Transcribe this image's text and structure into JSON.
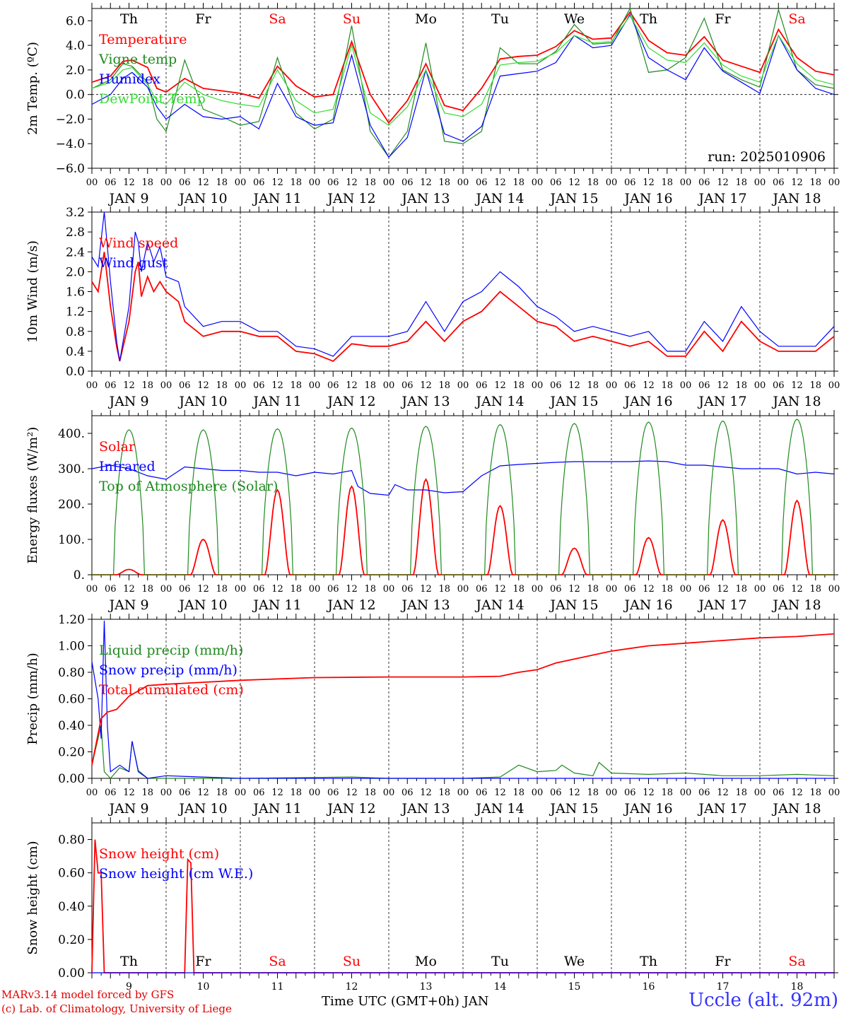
{
  "day_labels": [
    "Th",
    "Fr",
    "Sa",
    "Su",
    "Mo",
    "Tu",
    "We",
    "Th",
    "Fr",
    "Sa"
  ],
  "weekend_flags": [
    false,
    false,
    true,
    true,
    false,
    false,
    false,
    false,
    false,
    true
  ],
  "hour_ticks": [
    "00",
    "06",
    "12",
    "18"
  ],
  "date_labels": [
    "JAN  9",
    "JAN 10",
    "JAN 11",
    "JAN 12",
    "JAN 13",
    "JAN 14",
    "JAN 15",
    "JAN 16",
    "JAN 17",
    "JAN 18"
  ],
  "bottom_day_numbers": [
    "9",
    "10",
    "11",
    "12",
    "13",
    "14",
    "15",
    "16",
    "17",
    "18"
  ],
  "run_label": "run: 2025010906",
  "xaxis_title": "Time UTC (GMT+0h) JAN",
  "footer": {
    "line1": "MARv3.14 model forced by GFS",
    "line2": "(c) Lab. of Climatology, University of Liege",
    "station": "Uccle (alt. 92m)"
  },
  "colors": {
    "red": "#ff0000",
    "green": "#1f8a1f",
    "blue": "#0000ff",
    "lightgreen": "#33dd33"
  },
  "chart_data": [
    {
      "type": "line",
      "id": "temp",
      "ylabel": "2m Temp. (ºC)",
      "ylim": [
        -6,
        7
      ],
      "yticks": [
        -6,
        -4,
        -2,
        0,
        2,
        4,
        6
      ],
      "ytick_labels": [
        "−6.0",
        "−4.0",
        "−2.0",
        "0.0",
        "2.0",
        "4.0",
        "6.0"
      ],
      "zero_line": true,
      "x_hours_range": [
        0,
        240
      ],
      "series": [
        {
          "name": "Temperature",
          "color": "red",
          "x": [
            0,
            6,
            10,
            13,
            18,
            21,
            24,
            30,
            36,
            42,
            48,
            54,
            60,
            66,
            72,
            78,
            84,
            90,
            96,
            102,
            108,
            114,
            120,
            126,
            132,
            138,
            144,
            150,
            156,
            162,
            168,
            174,
            180,
            186,
            192,
            198,
            204,
            210,
            216,
            222,
            228,
            234,
            240
          ],
          "y": [
            1.0,
            1.5,
            2.7,
            2.8,
            2.2,
            0.5,
            0.2,
            1.3,
            0.5,
            0.3,
            0.1,
            -0.3,
            2.3,
            0.7,
            -0.2,
            0.0,
            4.3,
            0.0,
            -2.3,
            -0.5,
            2.5,
            -0.9,
            -1.3,
            0.5,
            2.9,
            3.1,
            3.2,
            3.9,
            5.2,
            4.5,
            4.6,
            6.7,
            4.4,
            3.4,
            3.2,
            4.7,
            2.8,
            2.3,
            1.8,
            5.3,
            3.0,
            1.9,
            1.6
          ]
        },
        {
          "name": "Vigne temp",
          "color": "green",
          "x": [
            0,
            6,
            10,
            13,
            18,
            21,
            24,
            30,
            36,
            42,
            48,
            54,
            60,
            66,
            72,
            78,
            84,
            90,
            96,
            102,
            108,
            114,
            120,
            126,
            132,
            138,
            144,
            150,
            156,
            162,
            168,
            174,
            180,
            186,
            192,
            198,
            204,
            210,
            216,
            222,
            228,
            234,
            240
          ],
          "y": [
            0.5,
            1.2,
            2.5,
            2.3,
            1.0,
            -2.0,
            -3.0,
            2.8,
            -1.2,
            -1.8,
            -2.5,
            -2.2,
            3.0,
            -1.5,
            -2.8,
            -2.0,
            5.6,
            -3.0,
            -5.1,
            -3.0,
            4.2,
            -3.8,
            -4.0,
            -3.0,
            3.8,
            2.5,
            2.5,
            3.5,
            5.7,
            4.1,
            4.2,
            7.0,
            1.8,
            2.0,
            3.0,
            6.2,
            2.0,
            1.2,
            0.6,
            6.9,
            2.0,
            0.8,
            0.5
          ]
        },
        {
          "name": "Humidex",
          "color": "blue",
          "x": [
            0,
            6,
            10,
            13,
            18,
            21,
            24,
            30,
            36,
            42,
            48,
            54,
            60,
            66,
            72,
            78,
            84,
            90,
            96,
            102,
            108,
            114,
            120,
            126,
            132,
            138,
            144,
            150,
            156,
            162,
            168,
            174,
            180,
            186,
            192,
            198,
            204,
            210,
            216,
            222,
            228,
            234,
            240
          ],
          "y": [
            -0.8,
            0.0,
            1.3,
            1.8,
            0.6,
            -1.0,
            -2.0,
            -0.8,
            -1.8,
            -2.0,
            -1.8,
            -2.8,
            0.9,
            -1.8,
            -2.5,
            -2.3,
            3.2,
            -2.5,
            -5.1,
            -3.5,
            2.0,
            -3.2,
            -3.8,
            -2.6,
            1.5,
            1.7,
            1.9,
            2.6,
            4.8,
            3.8,
            4.0,
            6.5,
            3.0,
            2.0,
            1.2,
            3.8,
            1.9,
            1.0,
            0.1,
            4.8,
            2.0,
            0.5,
            0.0
          ]
        },
        {
          "name": "DewPoint Temp",
          "color": "lightgreen",
          "x": [
            0,
            6,
            10,
            13,
            18,
            21,
            24,
            30,
            36,
            42,
            48,
            54,
            60,
            66,
            72,
            78,
            84,
            90,
            96,
            102,
            108,
            114,
            120,
            126,
            132,
            138,
            144,
            150,
            156,
            162,
            168,
            174,
            180,
            186,
            192,
            198,
            204,
            210,
            216,
            222,
            228,
            234,
            240
          ],
          "y": [
            0.5,
            1.0,
            2.0,
            2.2,
            0.8,
            -0.5,
            -0.8,
            1.0,
            0.0,
            -0.5,
            -0.8,
            -1.0,
            2.0,
            -0.5,
            -1.5,
            -1.2,
            4.0,
            -1.5,
            -2.5,
            -1.0,
            2.0,
            -1.5,
            -1.8,
            -0.8,
            2.4,
            2.6,
            2.7,
            3.4,
            4.8,
            4.2,
            4.3,
            6.4,
            3.8,
            2.8,
            2.6,
            4.2,
            2.4,
            1.5,
            1.0,
            4.8,
            2.5,
            1.2,
            0.8
          ]
        }
      ]
    },
    {
      "type": "line",
      "id": "wind",
      "ylabel": "10m Wind (m/s)",
      "ylim": [
        0,
        3.2
      ],
      "yticks": [
        0.0,
        0.4,
        0.8,
        1.2,
        1.6,
        2.0,
        2.4,
        2.8,
        3.2
      ],
      "ytick_labels": [
        "0.0",
        "0.4",
        "0.8",
        "1.2",
        "1.6",
        "2.0",
        "2.4",
        "2.8",
        "3.2"
      ],
      "x_hours_range": [
        0,
        240
      ],
      "series": [
        {
          "name": "Wind speed",
          "color": "red",
          "x": [
            0,
            2,
            4,
            6,
            8,
            9,
            12,
            14,
            15,
            16,
            18,
            20,
            22,
            24,
            28,
            30,
            36,
            42,
            48,
            54,
            60,
            66,
            72,
            78,
            84,
            90,
            96,
            102,
            108,
            114,
            120,
            126,
            132,
            138,
            144,
            150,
            156,
            162,
            168,
            174,
            180,
            186,
            192,
            198,
            204,
            210,
            216,
            222,
            228,
            234,
            240
          ],
          "y": [
            1.8,
            1.6,
            2.4,
            1.3,
            0.5,
            0.2,
            1.0,
            2.0,
            2.2,
            1.5,
            1.9,
            1.6,
            1.8,
            1.6,
            1.4,
            1.0,
            0.7,
            0.8,
            0.8,
            0.7,
            0.7,
            0.4,
            0.35,
            0.2,
            0.55,
            0.5,
            0.5,
            0.6,
            1.0,
            0.6,
            1.0,
            1.2,
            1.6,
            1.3,
            1.0,
            0.9,
            0.6,
            0.7,
            0.6,
            0.5,
            0.6,
            0.3,
            0.3,
            0.8,
            0.4,
            1.0,
            0.6,
            0.4,
            0.4,
            0.4,
            0.7
          ]
        },
        {
          "name": "Wind gust",
          "color": "blue",
          "x": [
            0,
            2,
            4,
            6,
            8,
            9,
            12,
            14,
            15,
            16,
            18,
            20,
            22,
            24,
            28,
            30,
            36,
            42,
            48,
            54,
            60,
            66,
            72,
            78,
            84,
            90,
            96,
            102,
            108,
            114,
            120,
            126,
            132,
            138,
            144,
            150,
            156,
            162,
            168,
            174,
            180,
            186,
            192,
            198,
            204,
            210,
            216,
            222,
            228,
            234,
            240
          ],
          "y": [
            2.3,
            2.1,
            3.2,
            1.8,
            0.6,
            0.2,
            1.3,
            2.8,
            2.6,
            2.0,
            2.6,
            2.2,
            2.5,
            1.9,
            1.8,
            1.3,
            0.9,
            1.0,
            1.0,
            0.8,
            0.8,
            0.5,
            0.45,
            0.3,
            0.7,
            0.7,
            0.7,
            0.8,
            1.4,
            0.8,
            1.4,
            1.6,
            2.0,
            1.7,
            1.3,
            1.1,
            0.8,
            0.9,
            0.8,
            0.7,
            0.8,
            0.4,
            0.4,
            1.0,
            0.6,
            1.3,
            0.8,
            0.5,
            0.5,
            0.5,
            0.9
          ]
        }
      ]
    },
    {
      "type": "line",
      "id": "energy",
      "ylabel": "Energy fluxes (W/m²)",
      "ylim": [
        0,
        450
      ],
      "yticks": [
        0,
        100,
        200,
        300,
        400
      ],
      "ytick_labels": [
        "0.",
        "100.",
        "200.",
        "300.",
        "400."
      ],
      "x_hours_range": [
        0,
        240
      ],
      "series": [
        {
          "name": "Solar",
          "color": "red",
          "daily_peaks": [
            15,
            100,
            240,
            250,
            270,
            195,
            75,
            105,
            155,
            210
          ]
        },
        {
          "name": "Infrared",
          "color": "blue",
          "x": [
            0,
            6,
            12,
            18,
            24,
            30,
            36,
            42,
            48,
            54,
            60,
            66,
            72,
            78,
            84,
            86,
            90,
            96,
            98,
            102,
            108,
            114,
            120,
            126,
            132,
            138,
            144,
            150,
            156,
            162,
            168,
            174,
            180,
            186,
            192,
            198,
            204,
            210,
            216,
            222,
            228,
            234,
            240
          ],
          "y": [
            300,
            310,
            300,
            280,
            270,
            305,
            300,
            295,
            295,
            290,
            290,
            280,
            290,
            285,
            295,
            250,
            230,
            225,
            255,
            240,
            240,
            232,
            235,
            280,
            308,
            312,
            315,
            318,
            320,
            320,
            320,
            320,
            322,
            320,
            310,
            310,
            305,
            300,
            300,
            300,
            285,
            290,
            285
          ]
        },
        {
          "name": "Top of Atmosphere (Solar)",
          "color": "green",
          "daily_peaks": [
            410,
            410,
            413,
            415,
            420,
            425,
            428,
            432,
            435,
            440
          ]
        }
      ]
    },
    {
      "type": "line",
      "id": "precip",
      "ylabel": "Precip (mm/h)",
      "ylim": [
        0,
        1.2
      ],
      "yticks": [
        0,
        0.2,
        0.4,
        0.6,
        0.8,
        1.0,
        1.2
      ],
      "ytick_labels": [
        "0.00",
        "0.20",
        "0.40",
        "0.60",
        "0.80",
        "1.00",
        "1.20"
      ],
      "x_hours_range": [
        0,
        240
      ],
      "series": [
        {
          "name": "Liquid precip (mm/h)",
          "color": "green",
          "x": [
            0,
            3,
            4,
            6,
            9,
            12,
            13,
            15,
            18,
            24,
            48,
            84,
            96,
            108,
            120,
            132,
            138,
            144,
            150,
            152,
            156,
            162,
            164,
            168,
            180,
            192,
            204,
            216,
            228,
            240
          ],
          "y": [
            0.1,
            0.4,
            0.05,
            0.0,
            0.08,
            0.05,
            0.28,
            0.06,
            0.0,
            0.0,
            0.0,
            0.01,
            0.0,
            0.0,
            0.0,
            0.01,
            0.1,
            0.05,
            0.06,
            0.1,
            0.04,
            0.02,
            0.12,
            0.04,
            0.03,
            0.04,
            0.02,
            0.02,
            0.03,
            0.02
          ]
        },
        {
          "name": "Snow precip (mm/h)",
          "color": "blue",
          "x": [
            0,
            2,
            3,
            4,
            5,
            6,
            9,
            12,
            13,
            15,
            18,
            24,
            48,
            240
          ],
          "y": [
            0.88,
            0.6,
            0.3,
            1.19,
            0.4,
            0.05,
            0.1,
            0.05,
            0.28,
            0.05,
            0.0,
            0.02,
            0.0,
            0.0
          ]
        },
        {
          "name": "Total cumulated (cm)",
          "color": "red",
          "x": [
            0,
            3,
            5,
            8,
            12,
            18,
            24,
            48,
            72,
            96,
            120,
            132,
            138,
            144,
            150,
            156,
            162,
            168,
            180,
            192,
            204,
            216,
            228,
            240
          ],
          "y": [
            0.1,
            0.45,
            0.5,
            0.52,
            0.62,
            0.7,
            0.71,
            0.74,
            0.76,
            0.765,
            0.765,
            0.77,
            0.8,
            0.82,
            0.87,
            0.9,
            0.93,
            0.96,
            1.0,
            1.02,
            1.04,
            1.06,
            1.07,
            1.09
          ]
        }
      ]
    },
    {
      "type": "line",
      "id": "snow",
      "ylabel": "Snow height (cm)",
      "ylim": [
        0,
        0.9
      ],
      "yticks": [
        0,
        0.2,
        0.4,
        0.6,
        0.8
      ],
      "ytick_labels": [
        "0.00",
        "0.20",
        "0.40",
        "0.60",
        "0.80"
      ],
      "x_hours_range": [
        0,
        240
      ],
      "series": [
        {
          "name": "Snow height (cm)",
          "color": "red",
          "x": [
            0,
            1,
            2,
            3,
            4,
            5,
            30,
            31,
            32,
            33,
            34,
            240
          ],
          "y": [
            0,
            0.8,
            0.6,
            0.6,
            0.0,
            0.0,
            0,
            0.68,
            0.66,
            0.0,
            0.0,
            0.0
          ]
        },
        {
          "name": "Snow height (cm W.E.)",
          "color": "blue",
          "x": [
            0,
            240
          ],
          "y": [
            0,
            0
          ]
        }
      ]
    }
  ]
}
